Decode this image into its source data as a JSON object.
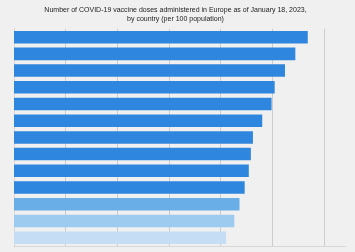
{
  "chart_data": {
    "type": "bar",
    "orientation": "horizontal",
    "title": "Number of COVID-19 vaccine doses administered in Europe as of January 18, 2023,\nby country (per 100 population)",
    "categories": [
      null,
      null,
      null,
      null,
      null,
      null,
      null,
      null,
      null,
      null,
      null,
      null,
      null
    ],
    "values": [
      284,
      272,
      262,
      252,
      249,
      240,
      231,
      229,
      227,
      223,
      218,
      213,
      205
    ],
    "colors": [
      "#2E86DE",
      "#2E86DE",
      "#2E86DE",
      "#2E86DE",
      "#2E86DE",
      "#2E86DE",
      "#2E86DE",
      "#2E86DE",
      "#2E86DE",
      "#2E86DE",
      "#6aaee8",
      "#9dcbf0",
      "#c5def5"
    ],
    "xlim": [
      0,
      320
    ],
    "xticks": [
      50,
      100,
      150,
      200,
      250,
      300
    ],
    "grid": true,
    "tick_labels": false
  }
}
